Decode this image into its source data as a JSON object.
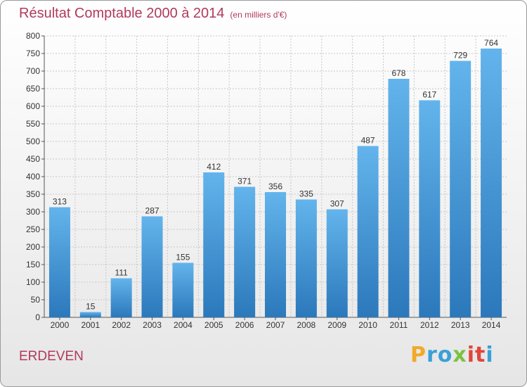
{
  "title": "Résultat Comptable 2000 à 2014",
  "unit_label": "(en milliers d'€)",
  "commune": "ERDEVEN",
  "logo": {
    "text": "Proxiti",
    "colors": [
      "#f2a92a",
      "#3aa0d8",
      "#7cc242",
      "#e0463c",
      "#3aa0d8"
    ]
  },
  "colors": {
    "bar_top": "#63b4ec",
    "bar_bottom": "#2b78bb",
    "title": "#b03a5a",
    "grid": "#c8c8c8"
  },
  "chart_data": {
    "type": "bar",
    "title": "Résultat Comptable 2000 à 2014",
    "xlabel": "",
    "ylabel": "",
    "ylim": [
      0,
      800
    ],
    "yticks": [
      0,
      50,
      100,
      150,
      200,
      250,
      300,
      350,
      400,
      450,
      500,
      550,
      600,
      650,
      700,
      750,
      800
    ],
    "grid": true,
    "categories": [
      "2000",
      "2001",
      "2002",
      "2003",
      "2004",
      "2005",
      "2006",
      "2007",
      "2008",
      "2009",
      "2010",
      "2011",
      "2012",
      "2013",
      "2014"
    ],
    "values": [
      313,
      15,
      111,
      287,
      155,
      412,
      371,
      356,
      335,
      307,
      487,
      678,
      617,
      729,
      764
    ]
  }
}
